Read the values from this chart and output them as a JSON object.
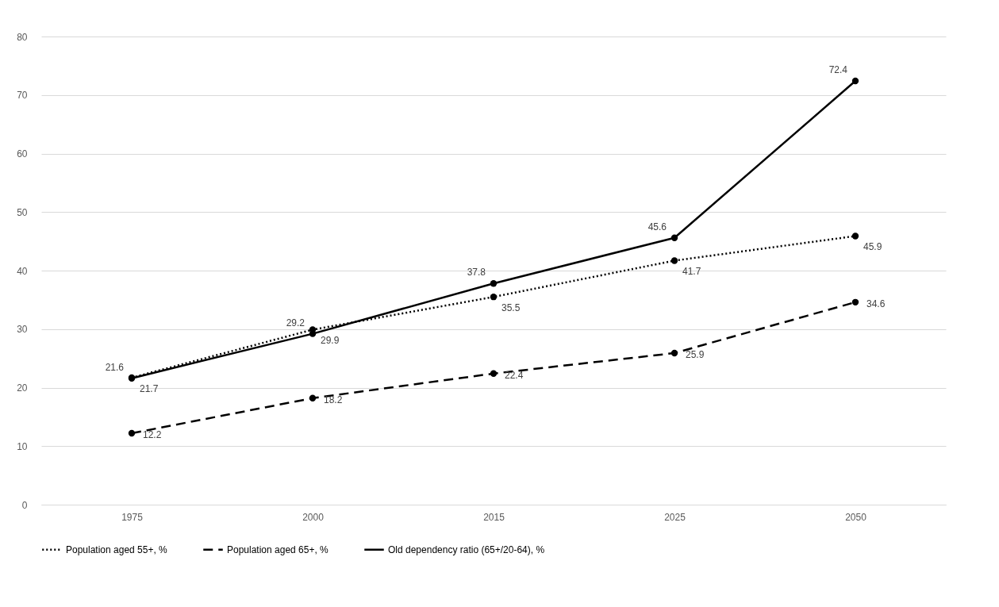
{
  "chart_data": {
    "type": "line",
    "categories": [
      "1975",
      "2000",
      "2015",
      "2025",
      "2050"
    ],
    "series": [
      {
        "name": "Population aged 55+, %",
        "color": "#000000",
        "line_style": "dotted",
        "values": [
          21.7,
          29.9,
          35.5,
          41.7,
          45.9
        ]
      },
      {
        "name": "Population aged 65+, %",
        "color": "#000000",
        "line_style": "dashed",
        "values": [
          12.2,
          18.2,
          22.4,
          25.9,
          34.6
        ]
      },
      {
        "name": "Old dependency ratio (65+/20-64), %",
        "color": "#000000",
        "line_style": "solid",
        "values": [
          21.6,
          29.2,
          37.8,
          45.6,
          72.4
        ]
      }
    ],
    "ylim": [
      0,
      80
    ],
    "yticks": [
      0,
      10,
      20,
      30,
      40,
      50,
      60,
      70,
      80
    ],
    "grid": "y",
    "legend": "bottom",
    "marker": "circle",
    "data_labels": true
  }
}
